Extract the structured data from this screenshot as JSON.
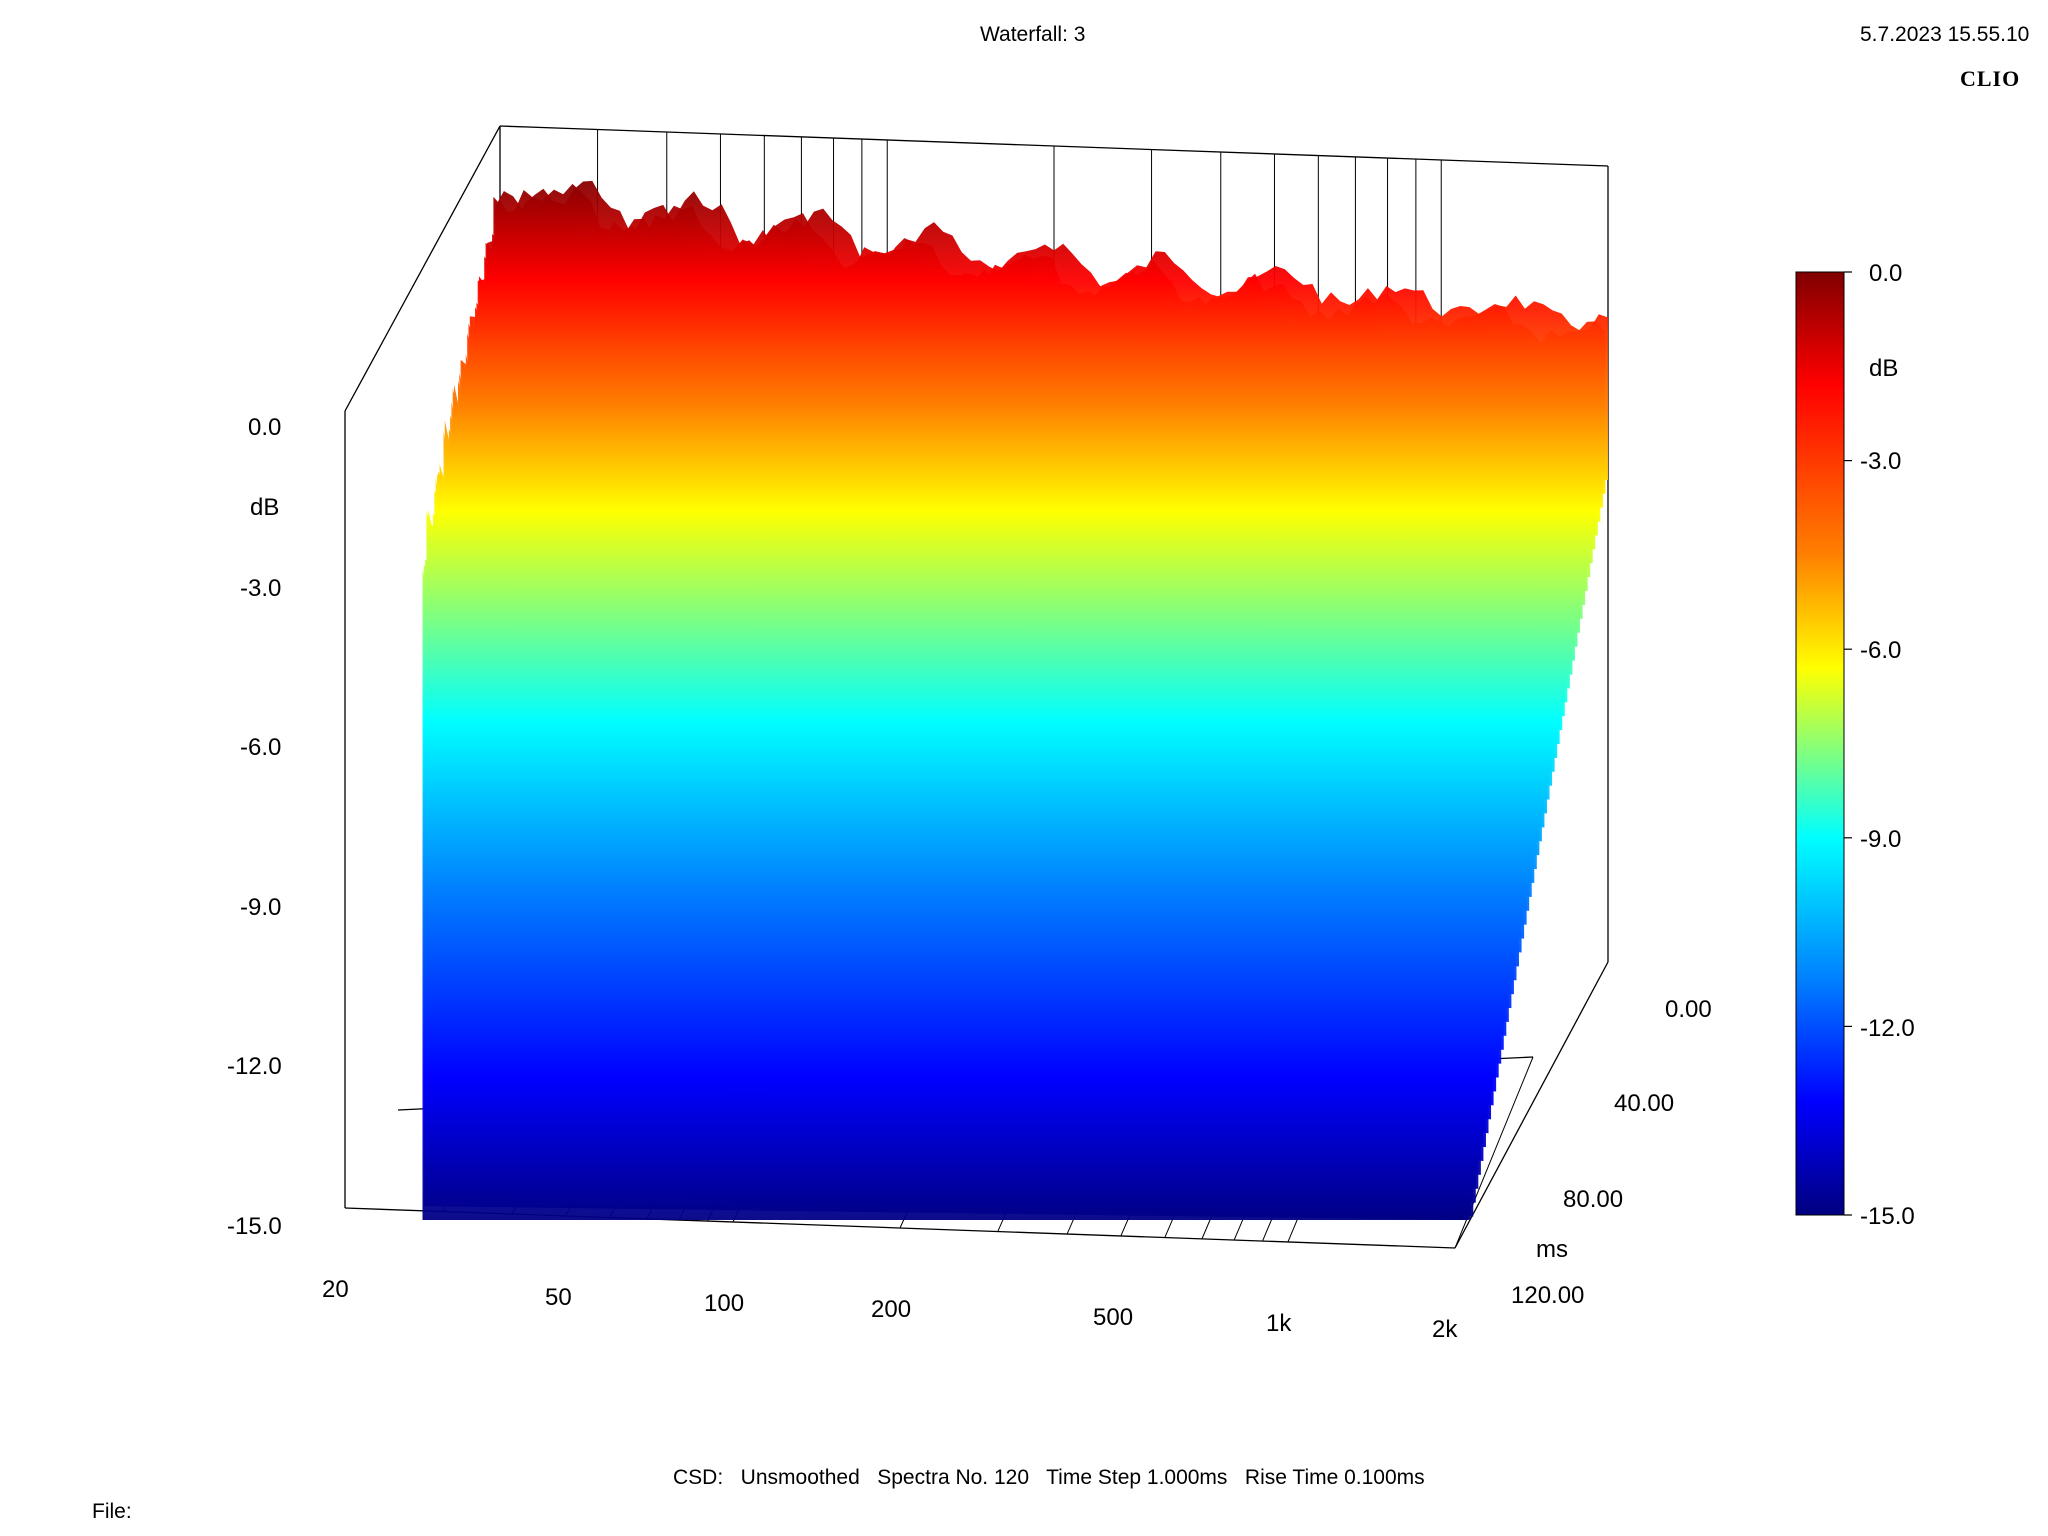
{
  "header": {
    "title": "Waterfall: 3",
    "datetime": "5.7.2023 15.55.10",
    "brand": "CLIO"
  },
  "footer": {
    "settings": "CSD:   Unsmoothed   Spectra No. 120   Time Step 1.000ms   Rise Time 0.100ms",
    "file_label": "File:"
  },
  "chart_data": {
    "type": "waterfall-3d-surface",
    "title": "Waterfall: 3",
    "z_axis": {
      "label": "dB",
      "range": [
        -15.0,
        0.0
      ],
      "ticks": [
        "0.0",
        "-3.0",
        "-6.0",
        "-9.0",
        "-12.0",
        "-15.0"
      ]
    },
    "x_axis": {
      "label": "",
      "scale": "log",
      "range": [
        20,
        2000
      ],
      "ticks": [
        "20",
        "50",
        "100",
        "200",
        "500",
        "1k",
        "2k"
      ]
    },
    "y_axis": {
      "label": "ms",
      "range": [
        0,
        120
      ],
      "ticks": [
        "0.00",
        "40.00",
        "80.00",
        "120.00"
      ]
    },
    "colorbar": {
      "label": "dB",
      "range": [
        -15.0,
        0.0
      ],
      "ticks": [
        "0.0",
        "-3.0",
        "-6.0",
        "-9.0",
        "-12.0",
        "-15.0"
      ],
      "colormap": "jet"
    },
    "spectra_count": 120,
    "time_step_ms": 1.0,
    "rise_time_ms": 0.1,
    "smoothing": "Unsmoothed",
    "grid": true,
    "legend": "right colorbar"
  }
}
